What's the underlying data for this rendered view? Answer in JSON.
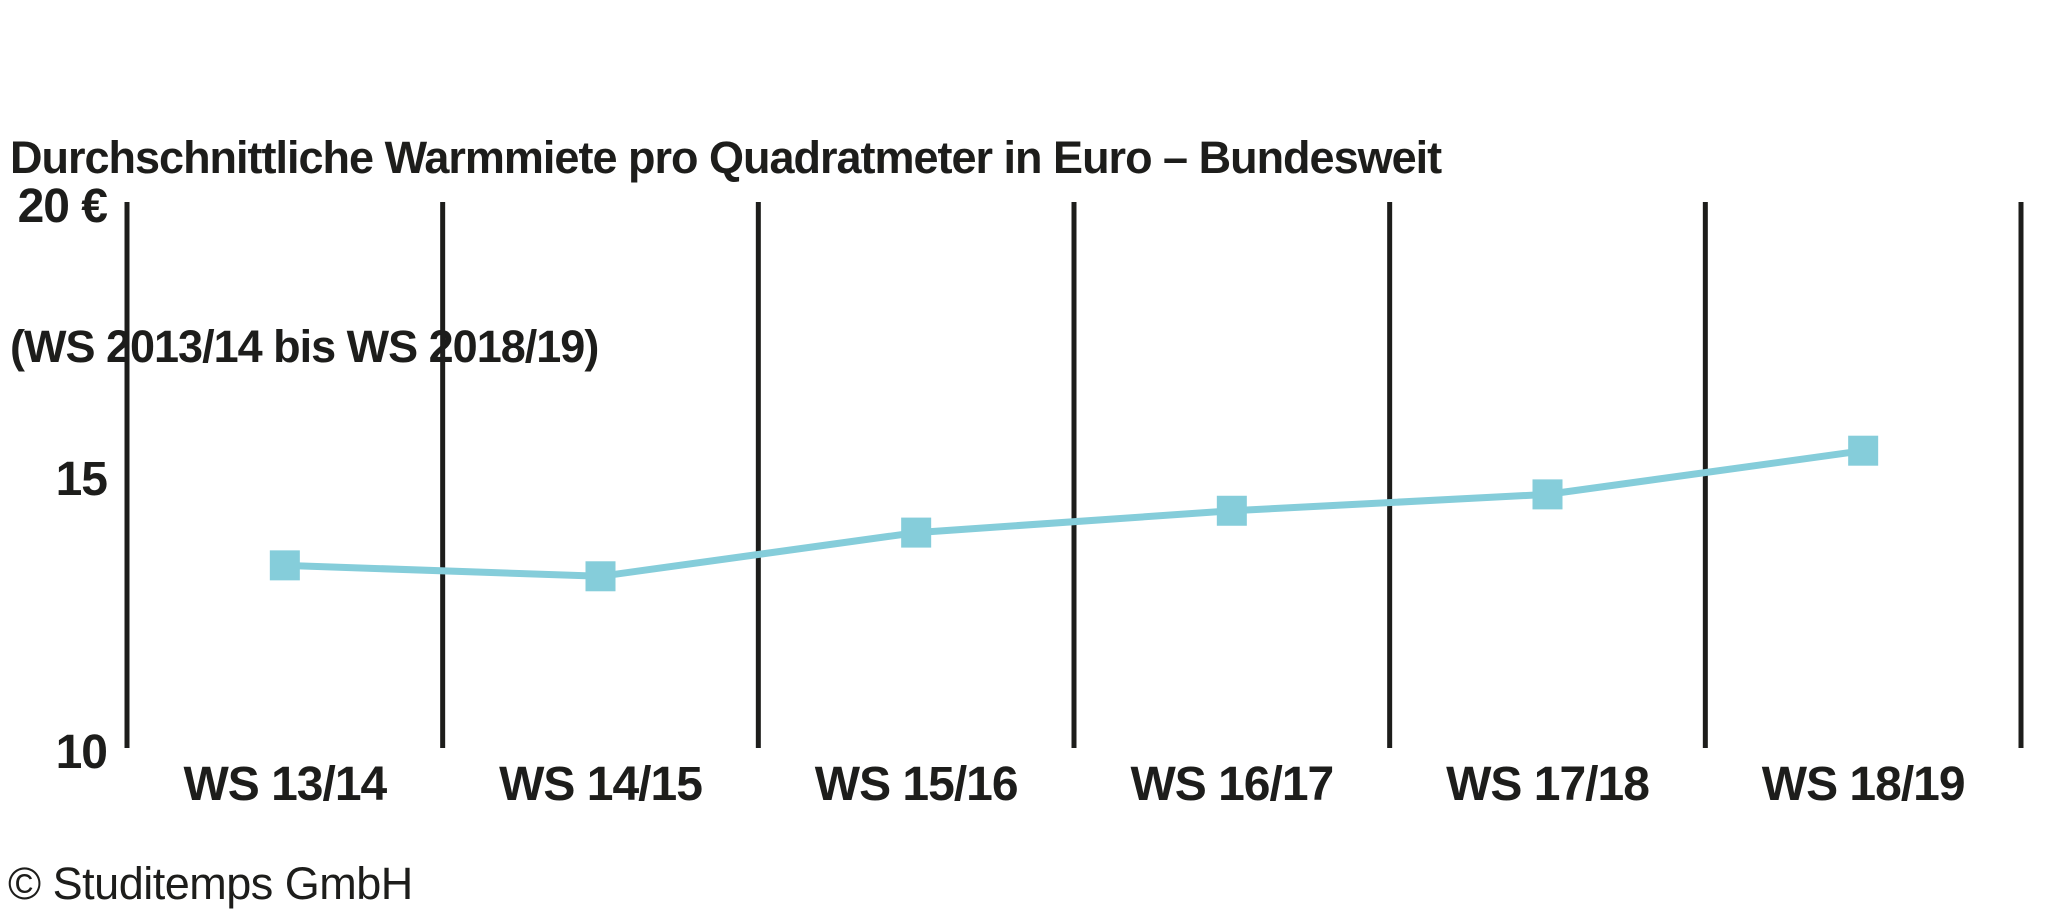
{
  "title": {
    "line1": "Durchschnittliche Warmmiete pro Quadratmeter in Euro – Bundesweit",
    "line2": "(WS 2013/14 bis WS 2018/19)"
  },
  "footer": {
    "copyright": "© Studitemps GmbH"
  },
  "colors": {
    "text": "#1d1d1b",
    "accent": "#85cdda"
  },
  "chart_data": {
    "type": "line",
    "title": "Durchschnittliche Warmmiete pro Quadratmeter in Euro – Bundesweit (WS 2013/14 bis WS 2018/19)",
    "categories": [
      "WS 13/14",
      "WS 14/15",
      "WS 15/16",
      "WS 16/17",
      "WS 17/18",
      "WS 18/19"
    ],
    "series": [
      {
        "name": "Durchschnittliche Warmmiete pro Quadratmeter (Euro)",
        "values": [
          13.4,
          13.2,
          14.0,
          14.4,
          14.7,
          15.5
        ]
      }
    ],
    "xlabel": "",
    "ylabel": "",
    "ylim": [
      10,
      20
    ],
    "yticks": [
      10,
      15,
      20
    ],
    "ytick_labels": [
      "10",
      "15",
      "20 €"
    ],
    "grid": "vertical-only",
    "legend": "none",
    "marker": "square",
    "line_color": "#85cdda",
    "axis_color": "#1d1d1b"
  }
}
